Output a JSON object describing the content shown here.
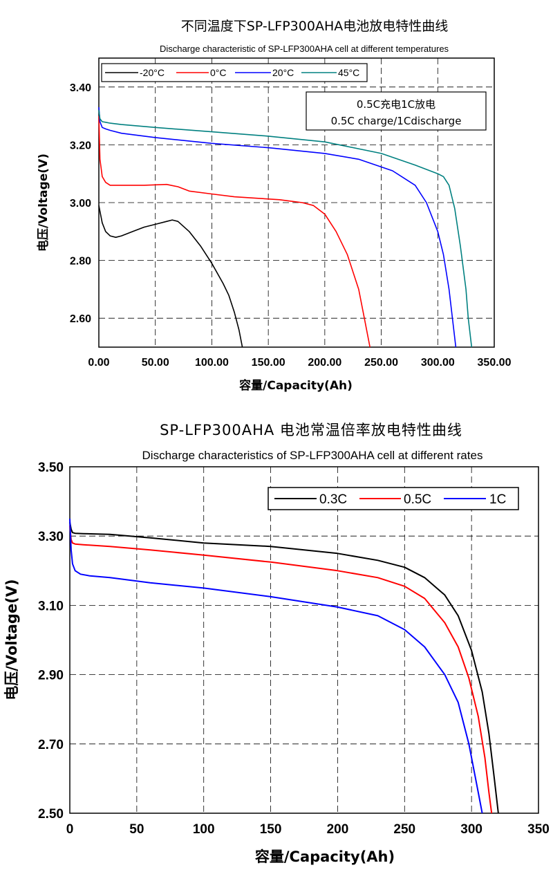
{
  "chart_data": [
    {
      "type": "line",
      "title": "不同温度下SP-LFP300AHA电池放电特性曲线",
      "subtitle": "Discharge characteristic of SP-LFP300AHA cell at different temperatures",
      "xlabel": "容量/Capacity(Ah)",
      "ylabel": "电压/Voltage(V)",
      "xlim": [
        0,
        350
      ],
      "ylim": [
        2.5,
        3.5
      ],
      "x_ticks": [
        "0.00",
        "50.00",
        "100.00",
        "150.00",
        "200.00",
        "250.00",
        "300.00",
        "350.00"
      ],
      "y_ticks": [
        "2.60",
        "2.80",
        "3.00",
        "3.20",
        "3.40"
      ],
      "grid": true,
      "legend_position": "top-left",
      "annotation": [
        "0.5C充电1C放电",
        "0.5C charge/1Cdischarge"
      ],
      "series": [
        {
          "name": "-20°C",
          "color": "#000000",
          "x": [
            0,
            1,
            3,
            6,
            10,
            15,
            20,
            30,
            40,
            50,
            60,
            65,
            70,
            80,
            90,
            100,
            110,
            115,
            120,
            124,
            127
          ],
          "y": [
            2.99,
            2.97,
            2.93,
            2.9,
            2.885,
            2.88,
            2.885,
            2.9,
            2.915,
            2.925,
            2.935,
            2.94,
            2.935,
            2.9,
            2.85,
            2.79,
            2.72,
            2.68,
            2.62,
            2.56,
            2.5
          ]
        },
        {
          "name": "0°C",
          "color": "#ff0000",
          "x": [
            0,
            1,
            3,
            6,
            10,
            20,
            40,
            60,
            70,
            80,
            100,
            120,
            140,
            160,
            170,
            180,
            190,
            200,
            210,
            220,
            230,
            235,
            240
          ],
          "y": [
            3.3,
            3.15,
            3.09,
            3.07,
            3.06,
            3.06,
            3.06,
            3.063,
            3.055,
            3.04,
            3.03,
            3.02,
            3.015,
            3.01,
            3.005,
            3.0,
            2.99,
            2.96,
            2.9,
            2.82,
            2.7,
            2.6,
            2.5
          ]
        },
        {
          "name": "20°C",
          "color": "#0000ff",
          "x": [
            0,
            1,
            3,
            6,
            10,
            20,
            50,
            100,
            150,
            200,
            230,
            260,
            280,
            290,
            300,
            305,
            310,
            313,
            316
          ],
          "y": [
            3.33,
            3.28,
            3.26,
            3.255,
            3.25,
            3.24,
            3.225,
            3.205,
            3.19,
            3.17,
            3.15,
            3.11,
            3.06,
            3.0,
            2.9,
            2.82,
            2.7,
            2.6,
            2.5
          ]
        },
        {
          "name": "45°C",
          "color": "#008080",
          "x": [
            0,
            1,
            3,
            6,
            10,
            20,
            50,
            100,
            150,
            200,
            250,
            280,
            300,
            305,
            310,
            315,
            320,
            325,
            327,
            330
          ],
          "y": [
            3.32,
            3.29,
            3.28,
            3.278,
            3.275,
            3.27,
            3.26,
            3.245,
            3.23,
            3.21,
            3.17,
            3.13,
            3.1,
            3.09,
            3.06,
            2.98,
            2.85,
            2.7,
            2.6,
            2.5
          ]
        }
      ]
    },
    {
      "type": "line",
      "title": "SP-LFP300AHA 电池常温倍率放电特性曲线",
      "subtitle": "Discharge characteristics of SP-LFP300AHA cell at different rates",
      "xlabel": "容量/Capacity(Ah)",
      "ylabel": "电压/Voltage(V)",
      "xlim": [
        0,
        350
      ],
      "ylim": [
        2.5,
        3.5
      ],
      "x_ticks": [
        "0",
        "50",
        "100",
        "150",
        "200",
        "250",
        "300",
        "350"
      ],
      "y_ticks": [
        "2.50",
        "2.70",
        "2.90",
        "3.10",
        "3.30",
        "3.50"
      ],
      "grid": true,
      "legend_position": "top-right",
      "series": [
        {
          "name": "0.3C",
          "color": "#000000",
          "x": [
            0,
            1,
            2,
            4,
            10,
            30,
            60,
            100,
            150,
            200,
            230,
            250,
            265,
            280,
            290,
            300,
            308,
            313,
            317,
            320
          ],
          "y": [
            3.34,
            3.32,
            3.31,
            3.308,
            3.307,
            3.305,
            3.295,
            3.28,
            3.27,
            3.25,
            3.23,
            3.21,
            3.18,
            3.13,
            3.07,
            2.97,
            2.85,
            2.73,
            2.6,
            2.5
          ]
        },
        {
          "name": "0.5C",
          "color": "#ff0000",
          "x": [
            0,
            1,
            2,
            4,
            10,
            30,
            60,
            100,
            150,
            200,
            230,
            250,
            265,
            280,
            290,
            298,
            305,
            310,
            313,
            315
          ],
          "y": [
            3.33,
            3.29,
            3.28,
            3.277,
            3.275,
            3.27,
            3.26,
            3.245,
            3.225,
            3.2,
            3.18,
            3.155,
            3.12,
            3.05,
            2.98,
            2.89,
            2.78,
            2.66,
            2.56,
            2.5
          ]
        },
        {
          "name": "1C",
          "color": "#0000ff",
          "x": [
            0,
            1,
            2,
            4,
            8,
            15,
            30,
            60,
            100,
            150,
            200,
            230,
            250,
            265,
            280,
            290,
            298,
            303,
            306,
            308
          ],
          "y": [
            3.35,
            3.26,
            3.22,
            3.2,
            3.19,
            3.185,
            3.18,
            3.165,
            3.15,
            3.125,
            3.095,
            3.07,
            3.03,
            2.98,
            2.9,
            2.82,
            2.7,
            2.6,
            2.54,
            2.5
          ]
        }
      ]
    }
  ]
}
